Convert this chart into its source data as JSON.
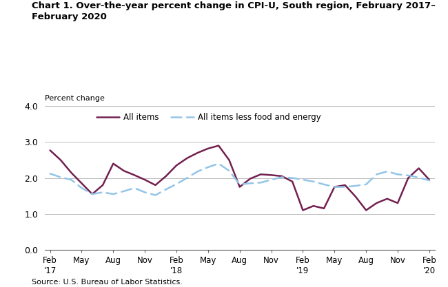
{
  "title": "Chart 1. Over-the-year percent change in CPI-U, South region, February 2017–\nFebruary 2020",
  "ylabel": "Percent change",
  "source": "Source: U.S. Bureau of Labor Statistics.",
  "ylim": [
    0.0,
    4.0
  ],
  "yticks": [
    0.0,
    1.0,
    2.0,
    3.0,
    4.0
  ],
  "all_items_color": "#722050",
  "core_color": "#92C5E8",
  "all_items_label": "All items",
  "core_label": "All items less food and energy",
  "xtick_labels": [
    "Feb\n'17",
    "May",
    "Aug",
    "Nov",
    "Feb\n'18",
    "May",
    "Aug",
    "Nov",
    "Feb\n'19",
    "May",
    "Aug",
    "Nov",
    "Feb\n'20"
  ],
  "xtick_positions": [
    0,
    3,
    6,
    9,
    12,
    15,
    18,
    21,
    24,
    27,
    30,
    33,
    36
  ],
  "all_items_y": [
    2.77,
    2.5,
    2.15,
    1.85,
    1.55,
    1.8,
    2.4,
    2.2,
    2.08,
    1.95,
    1.8,
    2.05,
    2.35,
    2.55,
    2.7,
    2.82,
    2.9,
    2.5,
    1.75,
    1.98,
    2.1,
    2.08,
    2.05,
    1.9,
    1.1,
    1.22,
    1.15,
    1.75,
    1.8,
    1.48,
    1.1,
    1.3,
    1.42,
    1.3,
    2.0,
    2.27,
    1.95
  ],
  "core_y": [
    2.12,
    2.02,
    1.95,
    1.72,
    1.55,
    1.6,
    1.55,
    1.63,
    1.72,
    1.6,
    1.52,
    1.68,
    1.83,
    2.0,
    2.18,
    2.3,
    2.4,
    2.2,
    1.82,
    1.85,
    1.87,
    1.95,
    2.02,
    2.0,
    1.95,
    1.9,
    1.82,
    1.75,
    1.75,
    1.78,
    1.82,
    2.1,
    2.18,
    2.1,
    2.07,
    2.01,
    1.93
  ]
}
